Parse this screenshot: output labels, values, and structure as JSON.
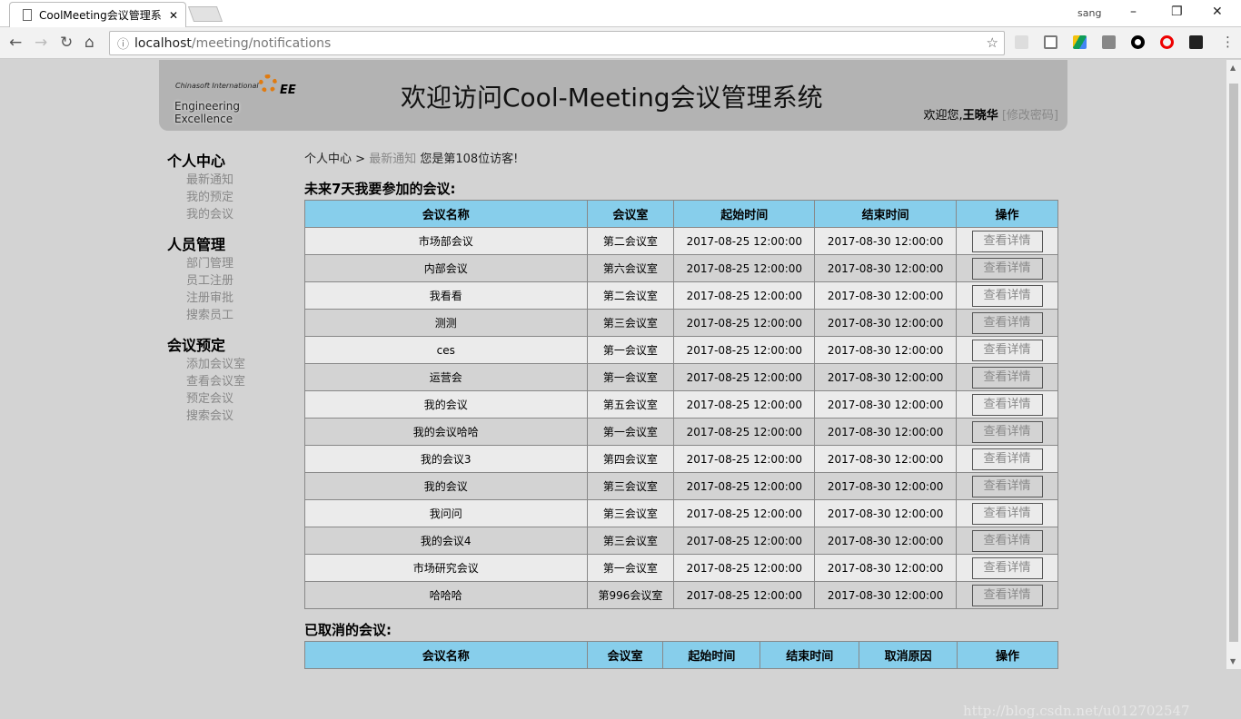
{
  "browser": {
    "tab_title": "CoolMeeting会议管理系",
    "user": "sang",
    "url_host": "localhost",
    "url_path": "/meeting/notifications"
  },
  "header": {
    "logo_line1": "Chinasoft International",
    "logo_line2": "Engineering Excellence",
    "logo_mark": "EE",
    "title": "欢迎访问Cool-Meeting会议管理系统",
    "welcome_prefix": "欢迎您,",
    "username": "王晓华",
    "change_password": "[修改密码]"
  },
  "sidebar": [
    {
      "group": "个人中心",
      "items": [
        "最新通知",
        "我的预定",
        "我的会议"
      ]
    },
    {
      "group": "人员管理",
      "items": [
        "部门管理",
        "员工注册",
        "注册审批",
        "搜索员工"
      ]
    },
    {
      "group": "会议预定",
      "items": [
        "添加会议室",
        "查看会议室",
        "预定会议",
        "搜索会议"
      ]
    }
  ],
  "breadcrumb": {
    "root": "个人中心",
    "sep": ">",
    "current": "最新通知",
    "visitor": "您是第108位访客!"
  },
  "upcoming": {
    "title": "未来7天我要参加的会议:",
    "headers": [
      "会议名称",
      "会议室",
      "起始时间",
      "结束时间",
      "操作"
    ],
    "button_label": "查看详情",
    "rows": [
      [
        "市场部会议",
        "第二会议室",
        "2017-08-25 12:00:00",
        "2017-08-30 12:00:00"
      ],
      [
        "内部会议",
        "第六会议室",
        "2017-08-25 12:00:00",
        "2017-08-30 12:00:00"
      ],
      [
        "我看看",
        "第二会议室",
        "2017-08-25 12:00:00",
        "2017-08-30 12:00:00"
      ],
      [
        "测测",
        "第三会议室",
        "2017-08-25 12:00:00",
        "2017-08-30 12:00:00"
      ],
      [
        "ces",
        "第一会议室",
        "2017-08-25 12:00:00",
        "2017-08-30 12:00:00"
      ],
      [
        "运营会",
        "第一会议室",
        "2017-08-25 12:00:00",
        "2017-08-30 12:00:00"
      ],
      [
        "我的会议",
        "第五会议室",
        "2017-08-25 12:00:00",
        "2017-08-30 12:00:00"
      ],
      [
        "我的会议哈哈",
        "第一会议室",
        "2017-08-25 12:00:00",
        "2017-08-30 12:00:00"
      ],
      [
        "我的会议3",
        "第四会议室",
        "2017-08-25 12:00:00",
        "2017-08-30 12:00:00"
      ],
      [
        "我的会议",
        "第三会议室",
        "2017-08-25 12:00:00",
        "2017-08-30 12:00:00"
      ],
      [
        "我问问",
        "第三会议室",
        "2017-08-25 12:00:00",
        "2017-08-30 12:00:00"
      ],
      [
        "我的会议4",
        "第三会议室",
        "2017-08-25 12:00:00",
        "2017-08-30 12:00:00"
      ],
      [
        "市场研究会议",
        "第一会议室",
        "2017-08-25 12:00:00",
        "2017-08-30 12:00:00"
      ],
      [
        "哈哈哈",
        "第996会议室",
        "2017-08-25 12:00:00",
        "2017-08-30 12:00:00"
      ]
    ]
  },
  "cancelled": {
    "title": "已取消的会议:",
    "headers": [
      "会议名称",
      "会议室",
      "起始时间",
      "结束时间",
      "取消原因",
      "操作"
    ]
  },
  "watermark": "http://blog.csdn.net/u012702547"
}
